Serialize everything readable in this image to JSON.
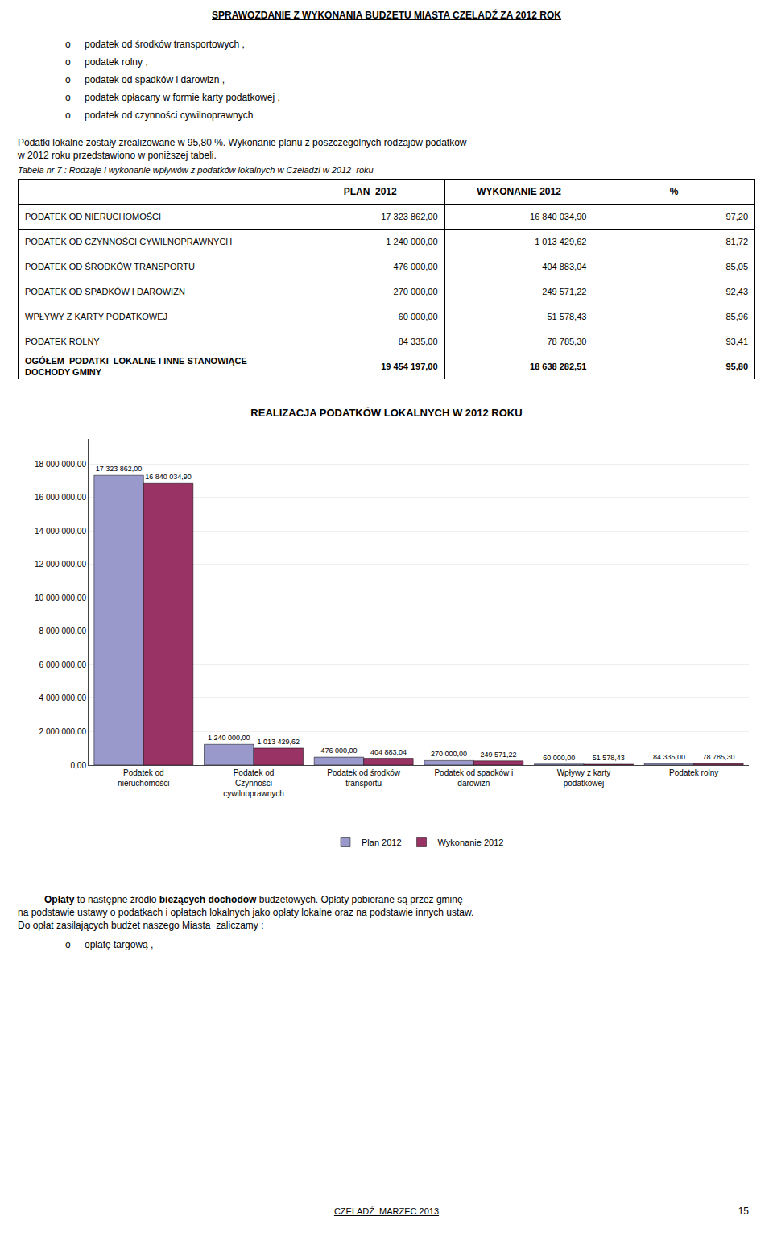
{
  "page_title": "SPRAWOZDANIE Z WYKONANIA BUDŻETU MIASTA CZELADŹ ZA 2012 ROK",
  "bullet_symbol": "o",
  "bullet_items": [
    "podatek od środków transportowych ,",
    "podatek rolny ,",
    "podatek od spadków i darowizn ,",
    "podatek opłacany w formie karty podatkowej ,",
    "podatek od czynności cywilnoprawnych"
  ],
  "paragraph": [
    "Podatki lokalne zostały zrealizowane w 95,80 %. Wykonanie planu z poszczególnych rodzajów podatków",
    "w 2012 roku przedstawiono w poniższej tabeli."
  ],
  "table_title": "Tabela nr 7 : Rodzaje i wykonanie wpływów z podatków lokalnych w Czeladzi w 2012  roku",
  "table": {
    "headers": [
      "PLAN  2012",
      "WYKONANIE 2012",
      "%"
    ],
    "rows": [
      [
        "PODATEK OD NIERUCHOMOŚCI",
        "17 323 862,00",
        "16 840 034,90",
        "97,20"
      ],
      [
        "PODATEK OD CZYNNOŚCI CYWILNOPRAWNYCH",
        "1 240 000,00",
        "1 013 429,62",
        "81,72"
      ],
      [
        "PODATEK OD ŚRODKÓW TRANSPORTU",
        "476 000,00",
        "404 883,04",
        "85,05"
      ],
      [
        "PODATEK OD SPADKÓW I DAROWIZN",
        "270 000,00",
        "249 571,22",
        "92,43"
      ],
      [
        "WPŁYWY Z KARTY PODATKOWEJ",
        "60 000,00",
        "51 578,43",
        "85,96"
      ],
      [
        "PODATEK ROLNY",
        "84 335,00",
        "78 785,30",
        "93,41"
      ],
      [
        "OGÓŁEM  PODATKI  LOKALNE I INNE STANOWIĄCE\nDOCHODY GMINY",
        "19 454 197,00",
        "18 638 282,51",
        "95,80"
      ]
    ]
  },
  "chart_data": {
    "type": "bar",
    "title": "REALIZACJA PODATKÓW LOKALNYCH W 2012 ROKU",
    "categories": [
      "Podatek od\nnieruchomości",
      "Podatek od\nCzynności\ncywilnoprawnych",
      "Podatek od środków\ntransportu",
      "Podatek od spadków i\ndarowizn",
      "Wpływy z karty\npodatkowej",
      "Podatek rolny"
    ],
    "series": [
      {
        "name": "Plan 2012",
        "color": "#9999CC",
        "values": [
          17323862.0,
          1240000.0,
          476000.0,
          270000.0,
          60000.0,
          84335.0
        ],
        "value_labels": [
          "17 323 862,00",
          "1 240 000,00",
          "476 000,00",
          "270 000,00",
          "60 000,00",
          "84 335,00"
        ]
      },
      {
        "name": "Wykonanie 2012",
        "color": "#993366",
        "values": [
          16840034.9,
          1013429.62,
          404883.04,
          249571.22,
          51578.43,
          78785.3
        ],
        "value_labels": [
          "16 840 034,90",
          "1 013 429,62",
          "404 883,04",
          "249 571,22",
          "51 578,43",
          "78 785,30"
        ]
      }
    ],
    "ylim": [
      0,
      19500000
    ],
    "yticks": [
      {
        "value": 0,
        "label": "0,00"
      },
      {
        "value": 2000000,
        "label": "2 000 000,00"
      },
      {
        "value": 4000000,
        "label": "4 000 000,00"
      },
      {
        "value": 6000000,
        "label": "6 000 000,00"
      },
      {
        "value": 8000000,
        "label": "8 000 000,00"
      },
      {
        "value": 10000000,
        "label": "10 000 000,00"
      },
      {
        "value": 12000000,
        "label": "12 000 000,00"
      },
      {
        "value": 14000000,
        "label": "14 000 000,00"
      },
      {
        "value": 16000000,
        "label": "16 000 000,00"
      },
      {
        "value": 18000000,
        "label": "18 000 000,00"
      }
    ],
    "grid": true,
    "legend": "bottom",
    "data_labels": true
  },
  "footer_lines": [
    [
      {
        "text": "Opłaty",
        "bold": true
      },
      {
        "text": " to następne źródło "
      },
      {
        "text": "bieżących dochodów",
        "bold": true
      },
      {
        "text": " budżetowych. Opłaty pobierane są przez gminę"
      }
    ],
    [
      {
        "text": "na podstawie ustawy o podatkach i opłatach lokalnych jako opłaty lokalne oraz na podstawie innych ustaw."
      }
    ],
    [
      {
        "text": "Do opłat zasilających budżet naszego Miasta  zaliczamy :"
      }
    ]
  ],
  "footer_bullets": [
    "opłatę targową ,"
  ],
  "bottom_text": "CZELADŹ  MARZEC 2013",
  "page_number": "15"
}
